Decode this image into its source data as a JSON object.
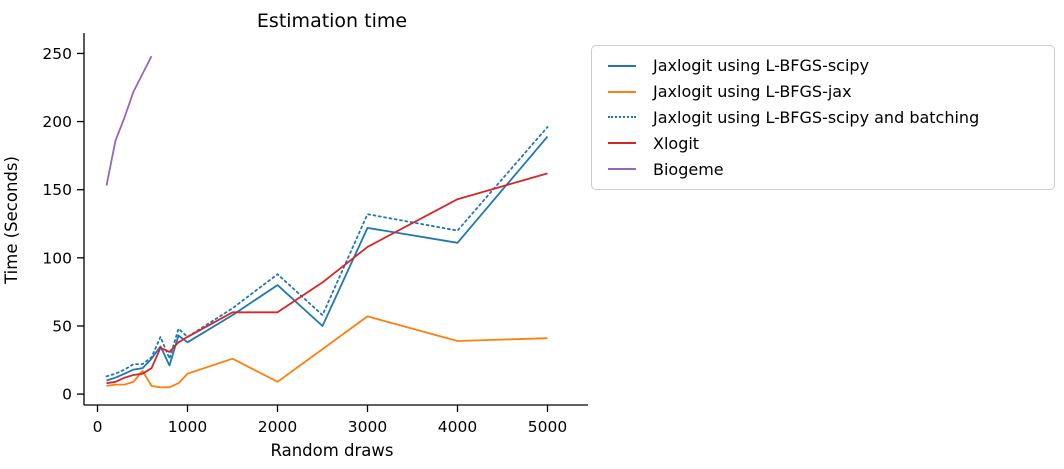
{
  "figure": {
    "title": "Estimation time",
    "xlabel": "Random draws",
    "ylabel": "Time (Seconds)"
  },
  "chart_data": {
    "type": "line",
    "title": "Estimation time",
    "xlabel": "Random draws",
    "ylabel": "Time (Seconds)",
    "xlim": [
      -150,
      5450
    ],
    "ylim": [
      -8,
      265
    ],
    "xticks": [
      0,
      1000,
      2000,
      3000,
      4000,
      5000
    ],
    "yticks": [
      0,
      50,
      100,
      150,
      200,
      250
    ],
    "grid": false,
    "legend_position": "outside-right",
    "series": [
      {
        "name": "Jaxlogit using L-BFGS-scipy",
        "color": "#1f77b4",
        "linestyle": "solid",
        "x": [
          100,
          200,
          300,
          400,
          500,
          600,
          700,
          800,
          900,
          1000,
          1500,
          2000,
          2500,
          3000,
          4000,
          5000
        ],
        "y": [
          10,
          12,
          15,
          18,
          19,
          26,
          35,
          21,
          43,
          38,
          58,
          80,
          50,
          122,
          111,
          189
        ]
      },
      {
        "name": "Jaxlogit using L-BFGS-jax",
        "color": "#ff7f0e",
        "linestyle": "solid",
        "x": [
          100,
          200,
          300,
          400,
          500,
          600,
          700,
          800,
          900,
          1000,
          1500,
          2000,
          2500,
          3000,
          4000,
          5000
        ],
        "y": [
          6,
          7,
          7,
          9,
          17,
          6,
          5,
          5,
          8,
          15,
          26,
          9,
          33,
          57,
          39,
          41
        ]
      },
      {
        "name": "Jaxlogit using L-BFGS-scipy and batching",
        "color": "#1f77b4",
        "linestyle": "dotted",
        "x": [
          100,
          200,
          300,
          400,
          500,
          600,
          700,
          800,
          900,
          1000,
          1500,
          2000,
          2500,
          3000,
          4000,
          5000
        ],
        "y": [
          13,
          15,
          18,
          22,
          22,
          27,
          42,
          26,
          48,
          42,
          63,
          88,
          58,
          132,
          120,
          196
        ]
      },
      {
        "name": "Xlogit",
        "color": "#d62728",
        "linestyle": "solid",
        "x": [
          100,
          200,
          300,
          400,
          500,
          600,
          700,
          800,
          900,
          1000,
          1500,
          2000,
          2500,
          3000,
          4000,
          5000
        ],
        "y": [
          8,
          9,
          12,
          14,
          15,
          19,
          34,
          31,
          38,
          42,
          60,
          60,
          82,
          108,
          143,
          162
        ]
      },
      {
        "name": "Biogeme",
        "color": "#9467bd",
        "linestyle": "solid",
        "x": [
          100,
          200,
          300,
          400,
          500,
          600
        ],
        "y": [
          153,
          186,
          203,
          222,
          235,
          248
        ]
      }
    ]
  }
}
